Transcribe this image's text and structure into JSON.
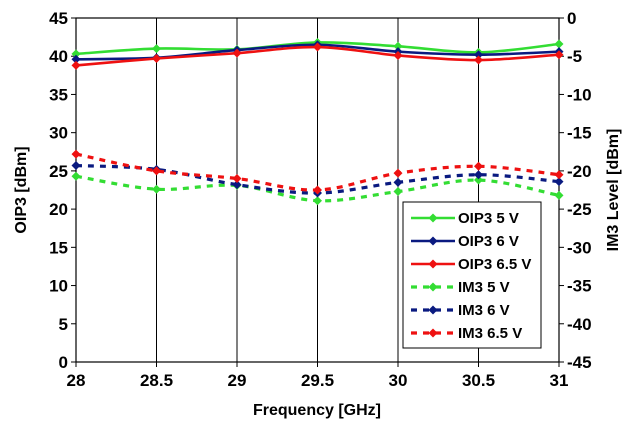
{
  "chart_data": {
    "type": "line",
    "title": "",
    "xlabel": "Frequency [GHz]",
    "ylabel_left": "OIP3 [dBm]",
    "ylabel_right": "IM3 Level [dBm]",
    "x": [
      28,
      28.5,
      29,
      29.5,
      30,
      30.5,
      31
    ],
    "xlim": [
      28,
      31
    ],
    "xticks": [
      "28",
      "28.5",
      "29",
      "29.5",
      "30",
      "30.5",
      "31"
    ],
    "ylim_left": [
      0,
      45
    ],
    "yticks_left": [
      "0",
      "5",
      "10",
      "15",
      "20",
      "25",
      "30",
      "35",
      "40",
      "45"
    ],
    "ylim_right": [
      -45,
      0
    ],
    "yticks_right": [
      "-45",
      "-40",
      "-35",
      "-30",
      "-25",
      "-20",
      "-15",
      "-10",
      "-5",
      "0"
    ],
    "grid": "vertical",
    "legend_position": "bottom-right",
    "series": [
      {
        "name": "OIP3 5 V",
        "axis": "left",
        "style": "solid",
        "color": "#33dd33",
        "values": [
          40.3,
          41.0,
          40.9,
          41.8,
          41.3,
          40.5,
          41.6
        ]
      },
      {
        "name": "OIP3 6 V",
        "axis": "left",
        "style": "solid",
        "color": "#0a1a80",
        "values": [
          39.6,
          39.8,
          40.8,
          41.5,
          40.6,
          40.2,
          40.6
        ]
      },
      {
        "name": "OIP3 6.5 V",
        "axis": "left",
        "style": "solid",
        "color": "#ee1111",
        "values": [
          38.8,
          39.7,
          40.4,
          41.2,
          40.1,
          39.5,
          40.2
        ]
      },
      {
        "name": "IM3 5 V",
        "axis": "right",
        "style": "dashed",
        "color": "#33dd33",
        "values": [
          -20.7,
          -22.4,
          -21.9,
          -23.9,
          -22.7,
          -21.2,
          -23.2
        ]
      },
      {
        "name": "IM3 6 V",
        "axis": "right",
        "style": "dashed",
        "color": "#0a1a80",
        "values": [
          -19.3,
          -19.8,
          -21.8,
          -22.9,
          -21.5,
          -20.5,
          -21.4
        ]
      },
      {
        "name": "IM3 6.5 V",
        "axis": "right",
        "style": "dashed",
        "color": "#ee1111",
        "values": [
          -17.8,
          -20.0,
          -21.0,
          -22.5,
          -20.3,
          -19.4,
          -20.5
        ]
      }
    ]
  }
}
